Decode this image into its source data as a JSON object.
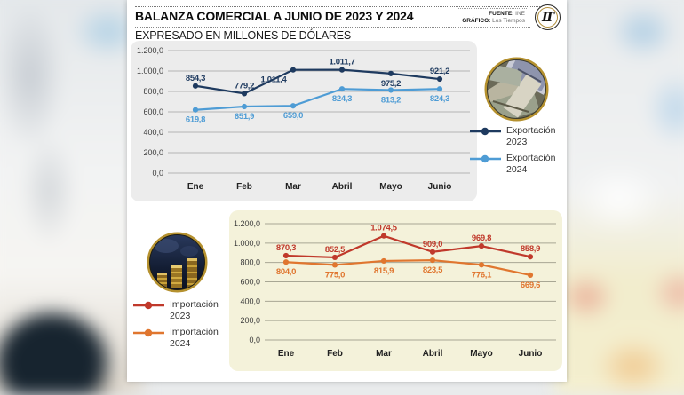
{
  "header": {
    "title": "BALANZA COMERCIAL A JUNIO DE 2023 Y 2024",
    "subtitle": "EXPRESADO EN MILLONES DE DÓLARES",
    "source_label": "FUENTE:",
    "source_value": "INE",
    "graphic_label": "GRÁFICO:",
    "graphic_value": "Los Tiempos",
    "logo_text": "LT"
  },
  "images": {
    "export_photo": "dollar-bills",
    "import_photo": "coin-stacks"
  },
  "chart_data": [
    {
      "type": "line",
      "title": "Exportaciones a junio 2023 y 2024 (millones de dólares)",
      "categories": [
        "Ene",
        "Feb",
        "Mar",
        "Abril",
        "Mayo",
        "Junio"
      ],
      "ylim": [
        0,
        1200
      ],
      "grid": true,
      "legend_position": "right",
      "panel_bg": "#ececec",
      "grid_color": "#b4b4b4",
      "yticks": [
        {
          "label": "1.200,0",
          "v": 1200
        },
        {
          "label": "1.000,0",
          "v": 1000
        },
        {
          "label": "800,0",
          "v": 800
        },
        {
          "label": "600,0",
          "v": 600
        },
        {
          "label": "400,0",
          "v": 400
        },
        {
          "label": "200,0",
          "v": 200
        },
        {
          "label": "0,0",
          "v": 0
        }
      ],
      "series": [
        {
          "name": "Exportación 2023",
          "color": "#1e3a5f",
          "values": [
            854.3,
            779.2,
            1011.4,
            1011.7,
            975.2,
            921.2
          ],
          "labels": [
            "854,3",
            "779,2",
            "1.011,4",
            "1.011,7",
            "975,2",
            "921,2"
          ],
          "label_side": [
            "above",
            "above",
            "below-left",
            "above",
            "below",
            "above"
          ]
        },
        {
          "name": "Exportación 2024",
          "color": "#4e9cd5",
          "values": [
            619.8,
            651.9,
            659.0,
            824.3,
            813.2,
            824.3
          ],
          "labels": [
            "619,8",
            "651,9",
            "659,0",
            "824,3",
            "813,2",
            "824,3"
          ],
          "label_side": [
            "below",
            "below",
            "below",
            "below",
            "below",
            "below"
          ]
        }
      ]
    },
    {
      "type": "line",
      "title": "Importaciones a junio 2023 y 2024 (millones de dólares)",
      "categories": [
        "Ene",
        "Feb",
        "Mar",
        "Abril",
        "Mayo",
        "Junio"
      ],
      "ylim": [
        0,
        1200
      ],
      "grid": true,
      "legend_position": "left",
      "panel_bg": "#f4f2da",
      "grid_color": "#a8a794",
      "yticks": [
        {
          "label": "1.200,0",
          "v": 1200
        },
        {
          "label": "1.000,0",
          "v": 1000
        },
        {
          "label": "800,0",
          "v": 800
        },
        {
          "label": "600,0",
          "v": 600
        },
        {
          "label": "400,0",
          "v": 400
        },
        {
          "label": "200,0",
          "v": 200
        },
        {
          "label": "0,0",
          "v": 0
        }
      ],
      "series": [
        {
          "name": "Importación 2023",
          "color": "#c0392b",
          "values": [
            870.3,
            852.5,
            1074.5,
            909.0,
            969.8,
            858.9
          ],
          "labels": [
            "870,3",
            "852,5",
            "1.074,5",
            "909,0",
            "969,8",
            "858,9"
          ],
          "label_side": [
            "above",
            "above",
            "above",
            "above",
            "above",
            "above"
          ]
        },
        {
          "name": "Importación 2024",
          "color": "#e0762f",
          "values": [
            804.0,
            775.0,
            815.9,
            823.5,
            776.1,
            669.6
          ],
          "labels": [
            "804,0",
            "775,0",
            "815,9",
            "823,5",
            "776,1",
            "669,6"
          ],
          "label_side": [
            "below",
            "below",
            "below",
            "below",
            "below",
            "below"
          ]
        }
      ]
    }
  ]
}
